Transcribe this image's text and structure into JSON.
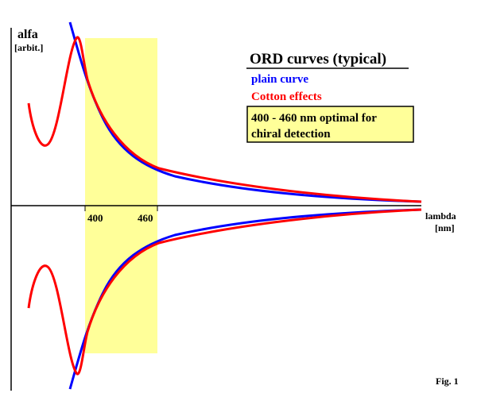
{
  "axis": {
    "y_label": "alfa",
    "y_unit": "[arbit.]",
    "x_label": "lambda",
    "x_unit": "[nm]",
    "ticks": [
      "400",
      "460"
    ]
  },
  "legend": {
    "title": "ORD  curves (typical)",
    "entries": [
      "plain curve",
      "Cotton effects"
    ]
  },
  "note": {
    "lines": [
      "400 - 460 nm optimal for",
      "chiral detection"
    ]
  },
  "caption": "Fig. 1"
}
